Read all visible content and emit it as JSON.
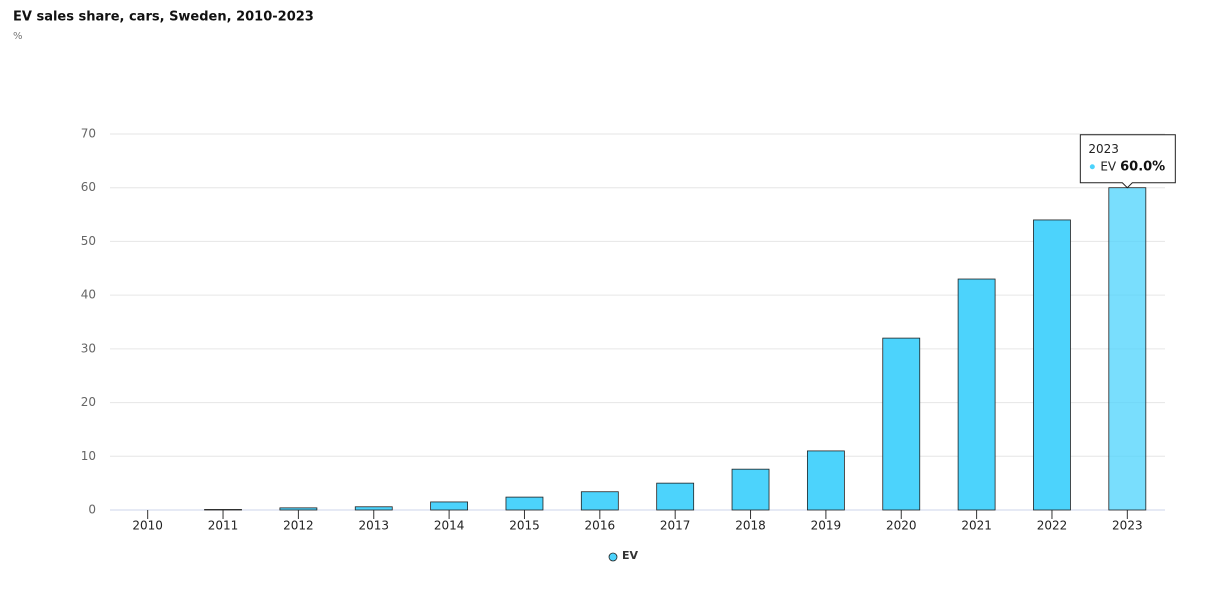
{
  "chart_data": {
    "type": "bar",
    "title": "EV sales share, cars, Sweden, 2010-2023",
    "subtitle": "%",
    "categories": [
      "2010",
      "2011",
      "2012",
      "2013",
      "2014",
      "2015",
      "2016",
      "2017",
      "2018",
      "2019",
      "2020",
      "2021",
      "2022",
      "2023"
    ],
    "series": [
      {
        "name": "EV",
        "color": "#4cd3fc",
        "values": [
          0,
          0.1,
          0.4,
          0.6,
          1.5,
          2.4,
          3.4,
          5.0,
          7.6,
          11,
          32,
          43,
          54,
          60.0
        ],
        "value_labels": [
          null,
          null,
          null,
          null,
          null,
          null,
          null,
          null,
          null,
          null,
          null,
          null,
          null,
          "60.0%"
        ]
      }
    ],
    "ylim": [
      0,
      70
    ],
    "yticks": [
      0,
      10,
      20,
      30,
      40,
      50,
      60,
      70
    ],
    "grid": true,
    "legend": "bottom"
  }
}
